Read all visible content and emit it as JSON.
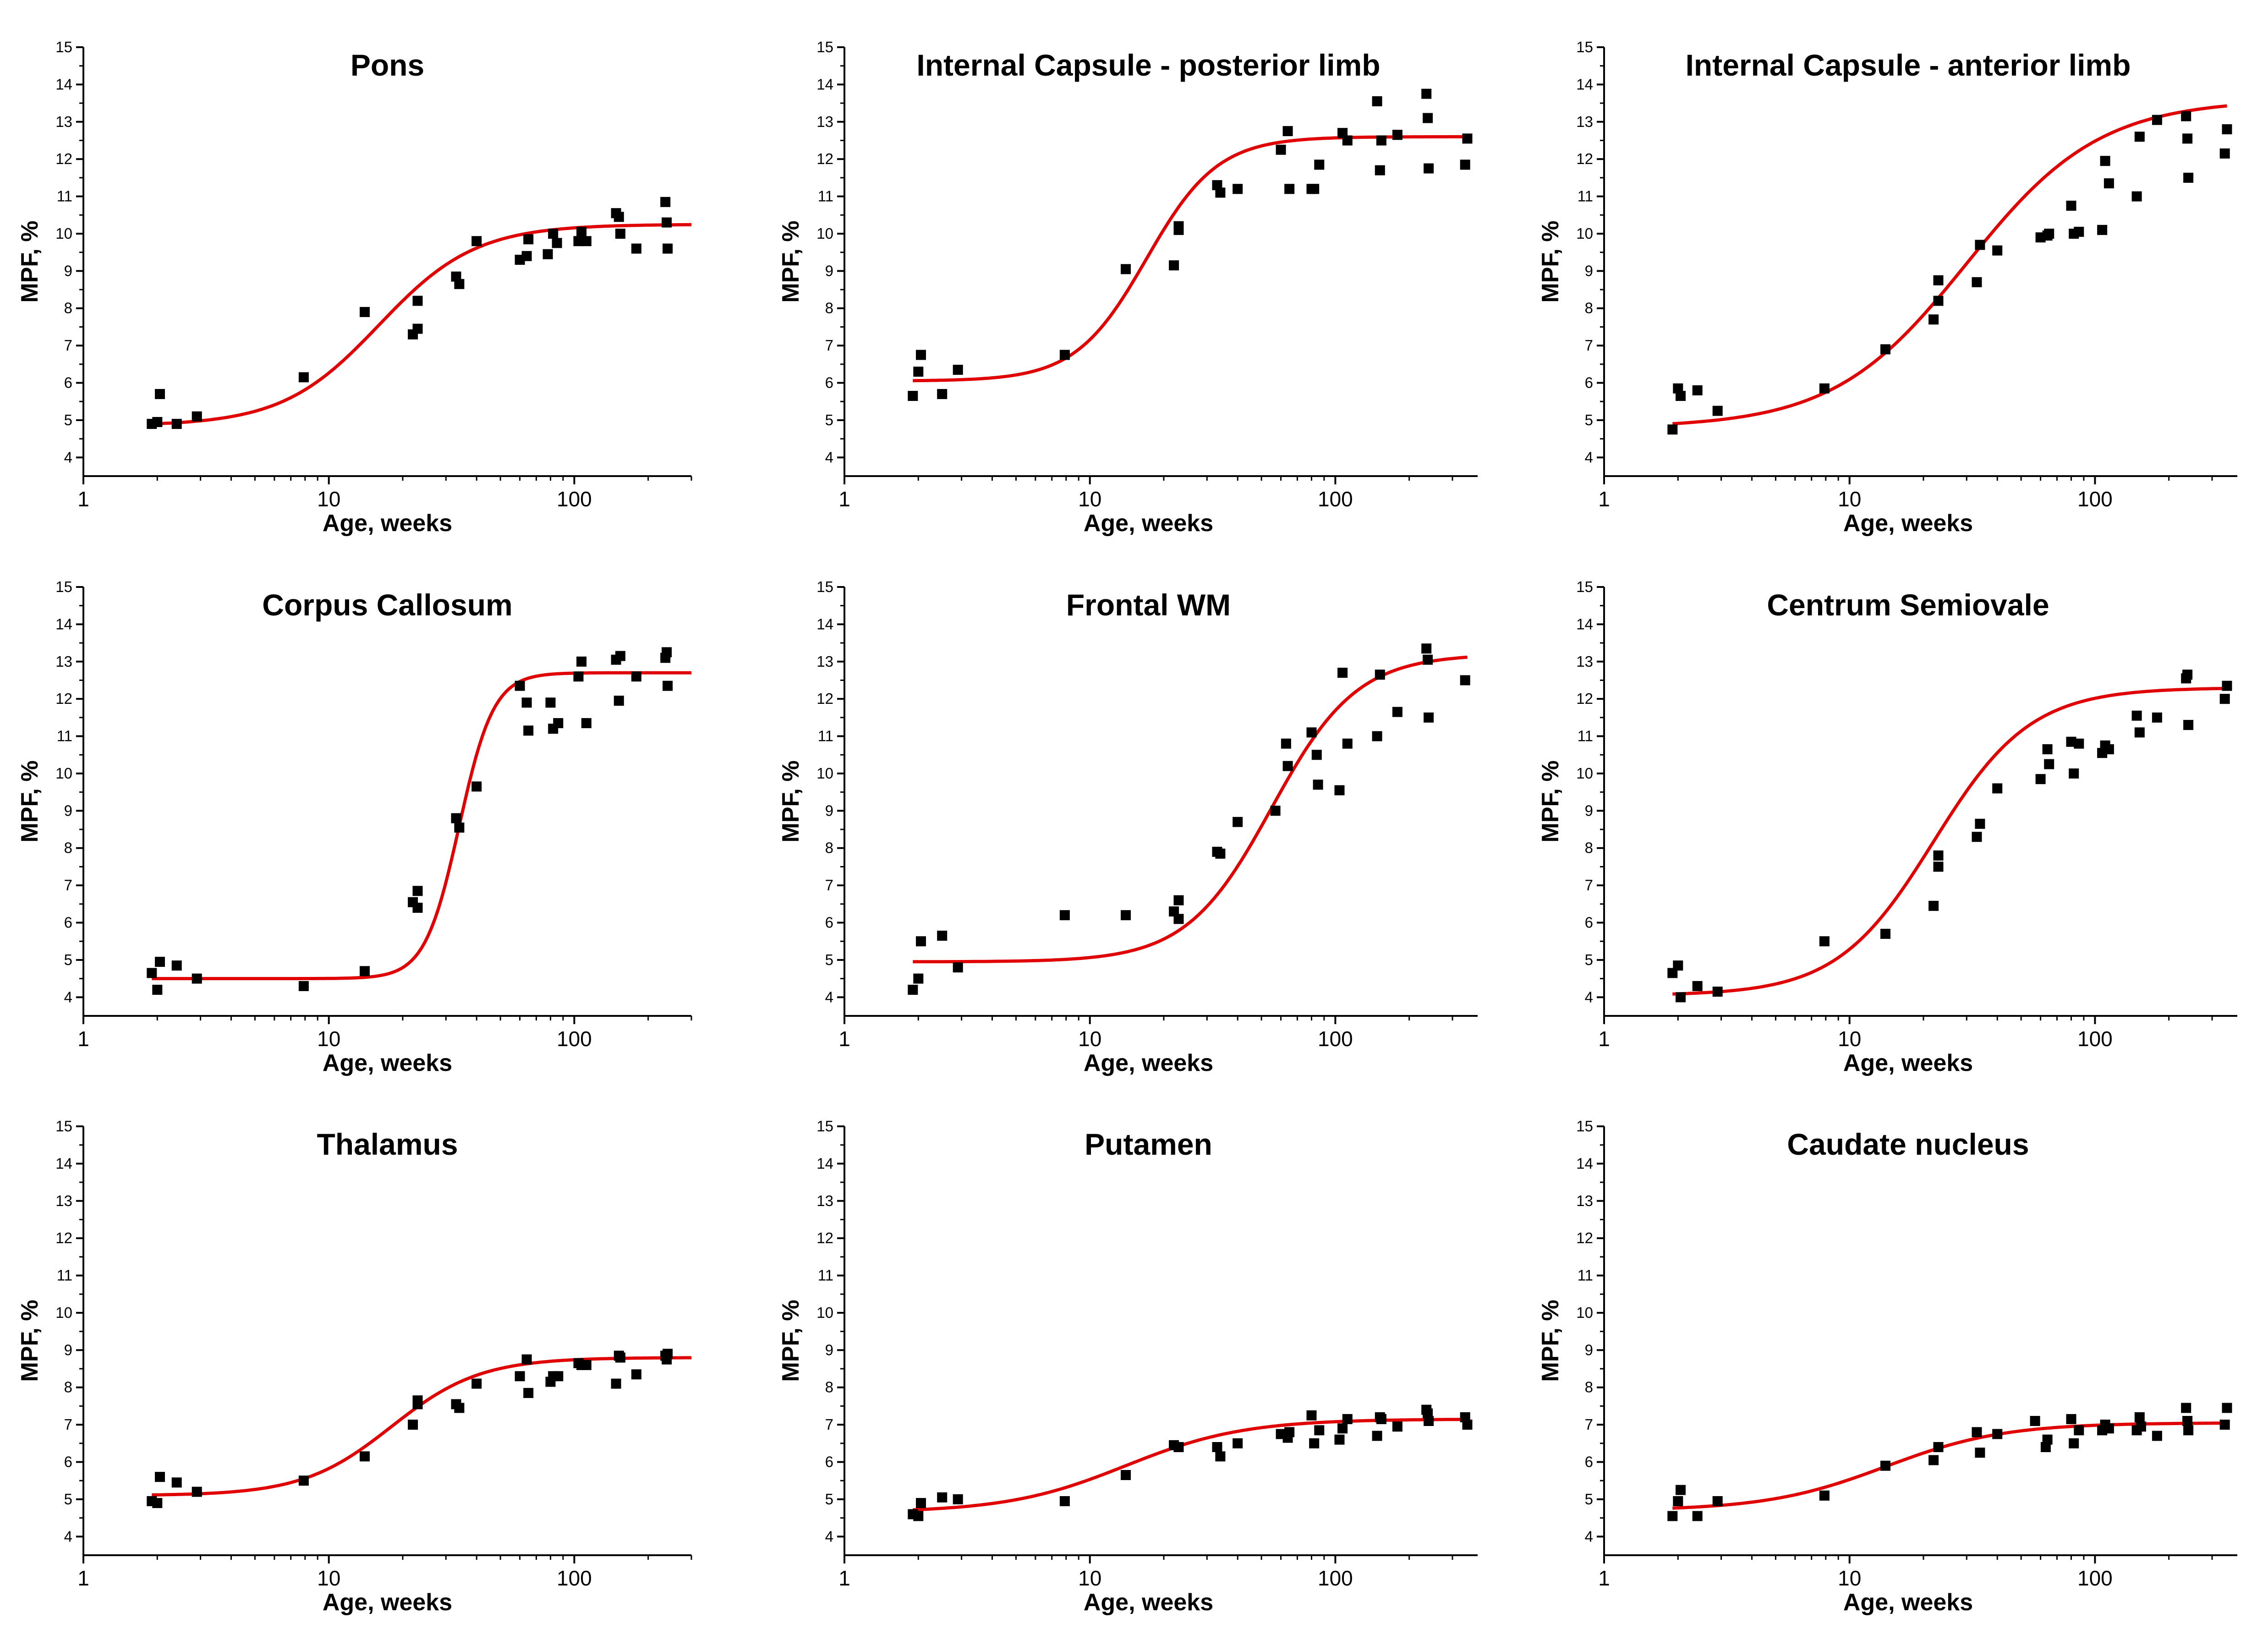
{
  "colors": {
    "points": "#000000",
    "fit": "#e00000",
    "axes": "#000000",
    "background": "#ffffff"
  },
  "shared": {
    "xlabel": "Age, weeks",
    "ylabel": "MPF, %",
    "xscale": "log",
    "xlim": [
      1,
      300
    ],
    "xlim_wide": [
      1,
      380
    ],
    "xticks": [
      1,
      10,
      100
    ],
    "ylim": [
      3.5,
      15
    ],
    "yticks": [
      4,
      5,
      6,
      7,
      8,
      9,
      10,
      11,
      12,
      13,
      14,
      15
    ]
  },
  "chart_data": [
    {
      "type": "scatter",
      "title": "Pons",
      "xlabel": "Age, weeks",
      "ylabel": "MPF, %",
      "xlim": [
        1,
        300
      ],
      "ylim": [
        3.5,
        15
      ],
      "points": {
        "x": [
          1.9,
          2.0,
          2.05,
          2.4,
          2.9,
          7.9,
          14,
          22,
          23,
          23,
          33,
          34,
          40,
          60,
          64,
          65,
          78,
          82,
          85,
          104,
          107,
          112,
          148,
          152,
          154,
          179,
          235,
          238,
          240
        ],
        "y": [
          4.9,
          4.95,
          5.7,
          4.9,
          5.1,
          6.15,
          7.9,
          7.3,
          7.45,
          8.2,
          8.85,
          8.65,
          9.8,
          9.3,
          9.4,
          9.85,
          9.45,
          10.0,
          9.75,
          9.8,
          10.05,
          9.8,
          10.55,
          10.45,
          10.0,
          9.6,
          10.85,
          10.3,
          9.6
        ]
      },
      "fit": {
        "model": "sigmoid-log",
        "lower": 4.85,
        "upper": 10.25,
        "x50_weeks": 16,
        "slope": 2.2,
        "x_range": [
          1.9,
          300
        ]
      }
    },
    {
      "type": "scatter",
      "title": "Internal Capsule - posterior limb",
      "xlabel": "Age, weeks",
      "ylabel": "MPF, %",
      "xlim": [
        1,
        380
      ],
      "ylim": [
        3.5,
        15
      ],
      "points": {
        "x": [
          1.9,
          2.0,
          2.05,
          2.5,
          2.9,
          7.9,
          14,
          22,
          23,
          23,
          33,
          34,
          40,
          60,
          64,
          65,
          80,
          82,
          86,
          107,
          112,
          148,
          152,
          154,
          179,
          235,
          238,
          240,
          338,
          345
        ],
        "y": [
          5.65,
          6.3,
          6.75,
          5.7,
          6.35,
          6.75,
          9.05,
          9.15,
          10.2,
          10.1,
          11.3,
          11.1,
          11.2,
          12.25,
          12.75,
          11.2,
          11.2,
          11.2,
          11.85,
          12.7,
          12.5,
          13.55,
          11.7,
          12.5,
          12.65,
          13.75,
          13.1,
          11.75,
          11.85,
          12.55
        ]
      },
      "fit": {
        "model": "sigmoid-log",
        "lower": 6.05,
        "upper": 12.6,
        "x50_weeks": 17,
        "slope": 3.0,
        "x_range": [
          1.9,
          345
        ]
      }
    },
    {
      "type": "scatter",
      "title": "Internal Capsule - anterior limb",
      "xlabel": "Age, weeks",
      "ylabel": "MPF, %",
      "xlim": [
        1,
        380
      ],
      "ylim": [
        3.5,
        15
      ],
      "points": {
        "x": [
          1.9,
          2.0,
          2.05,
          2.4,
          2.9,
          7.9,
          14,
          22,
          23,
          23,
          33,
          34,
          40,
          60,
          64,
          65,
          80,
          82,
          86,
          107,
          110,
          114,
          148,
          152,
          179,
          235,
          238,
          240,
          338,
          345
        ],
        "y": [
          4.75,
          5.85,
          5.65,
          5.8,
          5.25,
          5.85,
          6.9,
          7.7,
          8.2,
          8.75,
          8.7,
          9.7,
          9.55,
          9.9,
          9.95,
          10.0,
          10.75,
          10.0,
          10.05,
          10.1,
          11.95,
          11.35,
          11.0,
          12.6,
          13.05,
          13.15,
          12.55,
          11.5,
          12.15,
          12.8
        ]
      },
      "fit": {
        "model": "sigmoid-log",
        "lower": 4.8,
        "upper": 13.6,
        "x50_weeks": 30,
        "slope": 1.6,
        "x_range": [
          1.9,
          345
        ]
      }
    },
    {
      "type": "scatter",
      "title": "Corpus Callosum",
      "xlabel": "Age, weeks",
      "ylabel": "MPF, %",
      "xlim": [
        1,
        300
      ],
      "ylim": [
        3.5,
        15
      ],
      "points": {
        "x": [
          1.9,
          2.0,
          2.05,
          2.4,
          2.9,
          7.9,
          14,
          22,
          23,
          23,
          33,
          34,
          40,
          60,
          64,
          65,
          80,
          82,
          86,
          104,
          107,
          112,
          148,
          152,
          154,
          179,
          235,
          238,
          240
        ],
        "y": [
          4.65,
          4.2,
          4.95,
          4.85,
          4.5,
          4.3,
          4.7,
          6.55,
          6.85,
          6.4,
          8.8,
          8.55,
          9.65,
          12.35,
          11.9,
          11.15,
          11.9,
          11.2,
          11.35,
          12.6,
          13.0,
          11.35,
          13.05,
          11.95,
          13.15,
          12.6,
          13.1,
          13.25,
          12.35
        ]
      },
      "fit": {
        "model": "sigmoid-log",
        "lower": 4.5,
        "upper": 12.7,
        "x50_weeks": 34,
        "slope": 6.2,
        "x_range": [
          1.9,
          300
        ]
      }
    },
    {
      "type": "scatter",
      "title": "Frontal WM",
      "xlabel": "Age, weeks",
      "ylabel": "MPF, %",
      "xlim": [
        1,
        380
      ],
      "ylim": [
        3.5,
        15
      ],
      "points": {
        "x": [
          1.9,
          2.0,
          2.05,
          2.5,
          2.9,
          7.9,
          14,
          22,
          23,
          23,
          33,
          34,
          40,
          57,
          63,
          64,
          80,
          84,
          85,
          104,
          107,
          112,
          148,
          152,
          179,
          235,
          238,
          240,
          338
        ],
        "y": [
          4.2,
          4.5,
          5.5,
          5.65,
          4.8,
          6.2,
          6.2,
          6.3,
          6.1,
          6.6,
          7.9,
          7.85,
          8.7,
          9.0,
          10.8,
          10.2,
          11.1,
          10.5,
          9.7,
          9.55,
          12.7,
          10.8,
          11.0,
          12.65,
          11.65,
          13.35,
          13.05,
          11.5,
          12.5
        ]
      },
      "fit": {
        "model": "sigmoid-log",
        "lower": 4.95,
        "upper": 13.2,
        "x50_weeks": 55,
        "slope": 2.5,
        "x_range": [
          1.9,
          345
        ]
      }
    },
    {
      "type": "scatter",
      "title": "Centrum Semiovale",
      "xlabel": "Age, weeks",
      "ylabel": "MPF, %",
      "xlim": [
        1,
        380
      ],
      "ylim": [
        3.5,
        15
      ],
      "points": {
        "x": [
          1.9,
          2.0,
          2.05,
          2.4,
          2.9,
          7.9,
          14,
          22,
          23,
          23,
          33,
          34,
          40,
          60,
          64,
          65,
          80,
          82,
          86,
          107,
          110,
          114,
          148,
          152,
          179,
          235,
          238,
          240,
          338,
          345
        ],
        "y": [
          4.65,
          4.85,
          4.0,
          4.3,
          4.15,
          5.5,
          5.7,
          6.45,
          7.5,
          7.8,
          8.3,
          8.65,
          9.6,
          9.85,
          10.65,
          10.25,
          10.85,
          10.0,
          10.8,
          10.55,
          10.75,
          10.65,
          11.55,
          11.1,
          11.5,
          12.55,
          12.65,
          11.3,
          12.0,
          12.35
        ]
      },
      "fit": {
        "model": "sigmoid-log",
        "lower": 4.05,
        "upper": 12.3,
        "x50_weeks": 22,
        "slope": 2.2,
        "x_range": [
          1.9,
          345
        ]
      }
    },
    {
      "type": "scatter",
      "title": "Thalamus",
      "xlabel": "Age, weeks",
      "ylabel": "MPF, %",
      "xlim": [
        1,
        300
      ],
      "ylim": [
        3.5,
        15
      ],
      "points": {
        "x": [
          1.9,
          2.0,
          2.05,
          2.4,
          2.9,
          7.9,
          14,
          22,
          23,
          23,
          33,
          34,
          40,
          60,
          64,
          65,
          80,
          82,
          86,
          104,
          107,
          112,
          148,
          152,
          154,
          179,
          235,
          238,
          240
        ],
        "y": [
          4.95,
          4.9,
          5.6,
          5.45,
          5.2,
          5.5,
          6.15,
          7.0,
          7.55,
          7.65,
          7.55,
          7.45,
          8.1,
          8.3,
          8.75,
          7.85,
          8.15,
          8.3,
          8.3,
          8.65,
          8.6,
          8.6,
          8.1,
          8.85,
          8.8,
          8.35,
          8.85,
          8.75,
          8.9
        ]
      },
      "fit": {
        "model": "sigmoid-log",
        "lower": 5.1,
        "upper": 8.8,
        "x50_weeks": 18,
        "slope": 2.4,
        "x_range": [
          1.9,
          300
        ]
      }
    },
    {
      "type": "scatter",
      "title": "Putamen",
      "xlabel": "Age, weeks",
      "ylabel": "MPF, %",
      "xlim": [
        1,
        380
      ],
      "ylim": [
        3.5,
        15
      ],
      "points": {
        "x": [
          1.9,
          2.0,
          2.05,
          2.5,
          2.9,
          7.9,
          14,
          22,
          23,
          33,
          34,
          40,
          60,
          64,
          65,
          80,
          82,
          86,
          104,
          107,
          112,
          148,
          152,
          154,
          179,
          235,
          238,
          240,
          338,
          345
        ],
        "y": [
          4.6,
          4.55,
          4.9,
          5.05,
          5.0,
          4.95,
          5.65,
          6.45,
          6.4,
          6.4,
          6.15,
          6.5,
          6.75,
          6.65,
          6.8,
          7.25,
          6.5,
          6.85,
          6.6,
          6.9,
          7.15,
          6.7,
          7.2,
          7.15,
          6.95,
          7.4,
          7.3,
          7.1,
          7.2,
          7.0
        ]
      },
      "fit": {
        "model": "sigmoid-log",
        "lower": 4.65,
        "upper": 7.15,
        "x50_weeks": 14,
        "slope": 1.8,
        "x_range": [
          1.9,
          345
        ]
      }
    },
    {
      "type": "scatter",
      "title": "Caudate nucleus",
      "xlabel": "Age, weeks",
      "ylabel": "MPF, %",
      "xlim": [
        1,
        380
      ],
      "ylim": [
        3.5,
        15
      ],
      "points": {
        "x": [
          1.9,
          2.0,
          2.05,
          2.4,
          2.9,
          7.9,
          14,
          22,
          23,
          33,
          34,
          40,
          57,
          63,
          64,
          80,
          82,
          86,
          107,
          110,
          114,
          148,
          152,
          154,
          179,
          235,
          238,
          240,
          338,
          345
        ],
        "y": [
          4.55,
          4.95,
          5.25,
          4.55,
          4.95,
          5.1,
          5.9,
          6.05,
          6.4,
          6.8,
          6.25,
          6.75,
          7.1,
          6.4,
          6.6,
          7.15,
          6.5,
          6.85,
          6.85,
          7.0,
          6.9,
          6.85,
          7.2,
          6.95,
          6.7,
          7.45,
          7.1,
          6.85,
          7.0,
          7.45
        ]
      },
      "fit": {
        "model": "sigmoid-log",
        "lower": 4.7,
        "upper": 7.05,
        "x50_weeks": 14,
        "slope": 1.8,
        "x_range": [
          1.9,
          345
        ]
      }
    }
  ]
}
